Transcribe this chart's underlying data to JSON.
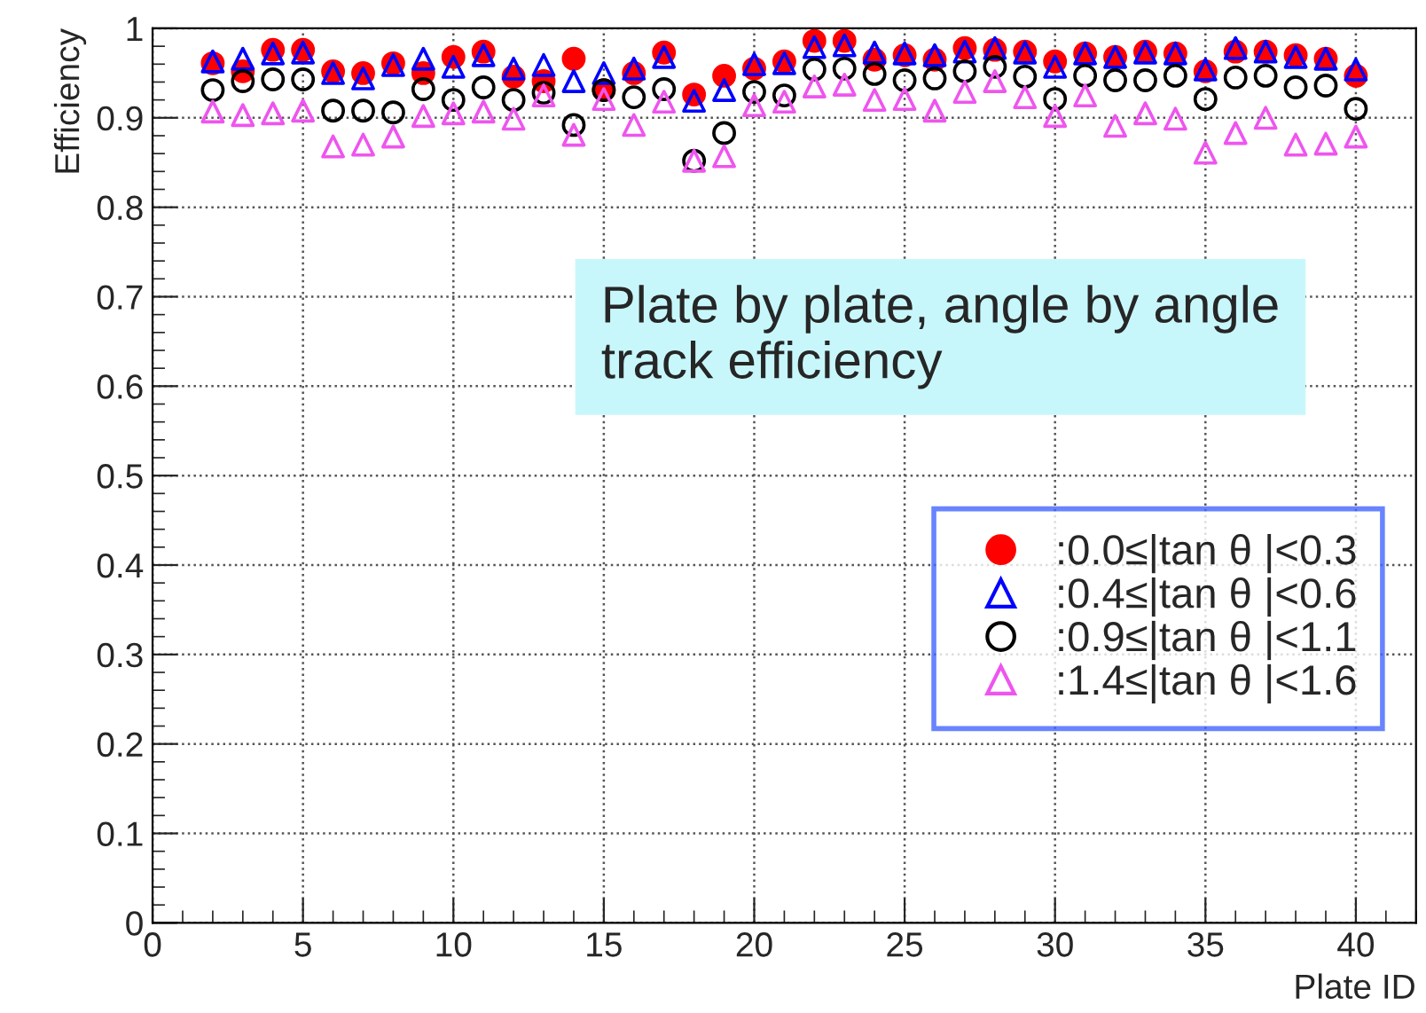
{
  "chart_data": {
    "type": "scatter",
    "xlabel": "Plate ID",
    "ylabel": "Efficiency",
    "x": [
      2,
      3,
      4,
      5,
      6,
      7,
      8,
      9,
      10,
      11,
      12,
      13,
      14,
      15,
      16,
      17,
      18,
      19,
      20,
      21,
      22,
      23,
      24,
      25,
      26,
      27,
      28,
      29,
      30,
      31,
      32,
      33,
      34,
      35,
      36,
      37,
      38,
      39,
      40
    ],
    "series": [
      {
        "name": ":0.0≤|tan θ |<0.3",
        "color": "#ff0000",
        "marker": "circle",
        "values": [
          0.961,
          0.952,
          0.976,
          0.976,
          0.952,
          0.95,
          0.961,
          0.95,
          0.968,
          0.974,
          0.946,
          0.941,
          0.966,
          0.931,
          0.95,
          0.973,
          0.926,
          0.947,
          0.955,
          0.963,
          0.986,
          0.986,
          0.965,
          0.97,
          0.965,
          0.978,
          0.976,
          0.974,
          0.963,
          0.972,
          0.968,
          0.974,
          0.972,
          0.952,
          0.974,
          0.974,
          0.97,
          0.966,
          0.947
        ]
      },
      {
        "name": ":0.4≤|tan θ |<0.6",
        "color": "#0000ff",
        "marker": "triangle",
        "values": [
          0.963,
          0.966,
          0.972,
          0.973,
          0.95,
          0.944,
          0.959,
          0.966,
          0.957,
          0.97,
          0.955,
          0.959,
          0.941,
          0.95,
          0.955,
          0.968,
          0.919,
          0.931,
          0.96,
          0.961,
          0.979,
          0.981,
          0.973,
          0.972,
          0.97,
          0.974,
          0.978,
          0.973,
          0.957,
          0.972,
          0.968,
          0.973,
          0.972,
          0.954,
          0.978,
          0.974,
          0.968,
          0.966,
          0.954
        ]
      },
      {
        "name": ":0.9≤|tan θ |<1.1",
        "color": "#000000",
        "marker": "circle",
        "values": [
          0.931,
          0.941,
          0.943,
          0.943,
          0.908,
          0.908,
          0.906,
          0.932,
          0.92,
          0.934,
          0.92,
          0.928,
          0.892,
          0.931,
          0.923,
          0.932,
          0.852,
          0.883,
          0.929,
          0.925,
          0.954,
          0.955,
          0.949,
          0.942,
          0.944,
          0.952,
          0.957,
          0.946,
          0.921,
          0.947,
          0.942,
          0.942,
          0.947,
          0.921,
          0.945,
          0.947,
          0.934,
          0.936,
          0.91
        ]
      },
      {
        "name": ":1.4≤|tan θ |<1.6",
        "color": "#ee55ee",
        "marker": "triangle",
        "values": [
          0.907,
          0.903,
          0.905,
          0.908,
          0.868,
          0.87,
          0.879,
          0.902,
          0.905,
          0.907,
          0.899,
          0.925,
          0.881,
          0.921,
          0.892,
          0.918,
          0.852,
          0.857,
          0.914,
          0.918,
          0.935,
          0.937,
          0.92,
          0.921,
          0.908,
          0.929,
          0.941,
          0.923,
          0.902,
          0.925,
          0.891,
          0.905,
          0.899,
          0.861,
          0.883,
          0.9,
          0.87,
          0.871,
          0.879
        ]
      }
    ],
    "xlim": [
      0,
      42
    ],
    "xticks": [
      0,
      5,
      10,
      15,
      20,
      25,
      30,
      35,
      40
    ],
    "ylim": [
      0,
      1
    ],
    "yticks": [
      0,
      0.1,
      0.2,
      0.3,
      0.4,
      0.5,
      0.6,
      0.7,
      0.8,
      0.9,
      1
    ],
    "grid": true,
    "legend": "right",
    "annotations": [
      "Plate by plate, angle by angle\ntrack efficiency"
    ]
  }
}
